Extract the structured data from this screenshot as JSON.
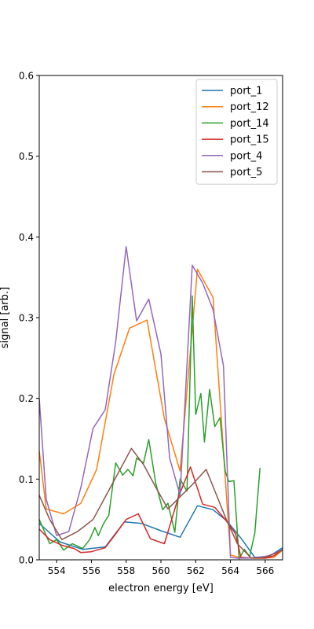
{
  "chart_data": {
    "type": "line",
    "xlabel": "electron energy [eV]",
    "ylabel": "signal [arb.]",
    "xlim": [
      553,
      567
    ],
    "ylim": [
      0,
      0.6
    ],
    "xticks": [
      554,
      556,
      558,
      560,
      562,
      564,
      566
    ],
    "xtick_labels": [
      "554",
      "556",
      "558",
      "560",
      "562",
      "564",
      "566"
    ],
    "yticks": [
      0,
      0.1,
      0.2,
      0.3,
      0.4,
      0.5,
      0.6
    ],
    "ytick_labels": [
      "0.0",
      "0.1",
      "0.2",
      "0.3",
      "0.4",
      "0.5",
      "0.6"
    ],
    "grid": false,
    "legend_position": "top-right",
    "series": [
      {
        "name": "port_1",
        "color": "#1f77b4",
        "x": [
          553.0,
          554.2,
          555.5,
          556.8,
          557.9,
          558.9,
          560.0,
          561.1,
          562.1,
          563.0,
          563.8,
          564.6,
          565.4,
          566.2,
          567.0
        ],
        "y": [
          0.045,
          0.022,
          0.013,
          0.016,
          0.047,
          0.045,
          0.036,
          0.028,
          0.067,
          0.062,
          0.048,
          0.027,
          0.003,
          0.004,
          0.015
        ]
      },
      {
        "name": "port_12",
        "color": "#ff7f0e",
        "x": [
          553.0,
          553.4,
          554.4,
          555.4,
          556.3,
          557.3,
          558.2,
          559.2,
          560.2,
          561.1,
          562.1,
          563.0,
          564.0,
          564.5,
          565.2,
          566.0,
          566.5,
          567.0
        ],
        "y": [
          0.135,
          0.063,
          0.057,
          0.07,
          0.112,
          0.23,
          0.287,
          0.297,
          0.175,
          0.11,
          0.36,
          0.325,
          0.006,
          0.003,
          0.002,
          0.002,
          0.003,
          0.012
        ]
      },
      {
        "name": "port_14",
        "color": "#2ca02c",
        "x": [
          553.0,
          553.6,
          554.0,
          554.4,
          554.9,
          555.5,
          555.9,
          556.2,
          556.4,
          556.7,
          557.0,
          557.4,
          557.8,
          558.1,
          558.4,
          558.6,
          559.0,
          559.3,
          559.7,
          560.1,
          560.4,
          560.8,
          561.1,
          561.5,
          561.8,
          562.0,
          562.3,
          562.5,
          562.8,
          563.1,
          563.4,
          563.7,
          563.9,
          564.2,
          564.5,
          564.8,
          565.1,
          565.4,
          565.7
        ],
        "y": [
          0.05,
          0.02,
          0.025,
          0.012,
          0.02,
          0.014,
          0.025,
          0.04,
          0.03,
          0.045,
          0.055,
          0.12,
          0.105,
          0.112,
          0.104,
          0.126,
          0.12,
          0.149,
          0.095,
          0.062,
          0.07,
          0.034,
          0.1,
          0.085,
          0.327,
          0.18,
          0.206,
          0.146,
          0.211,
          0.165,
          0.176,
          0.11,
          0.097,
          0.098,
          0.001,
          0.013,
          0.004,
          0.033,
          0.114
        ]
      },
      {
        "name": "port_15",
        "color": "#d62728",
        "x": [
          553.0,
          553.6,
          554.3,
          555.0,
          555.4,
          556.0,
          556.8,
          557.4,
          558.0,
          558.7,
          559.4,
          560.2,
          561.0,
          561.7,
          562.4,
          563.1,
          563.7,
          564.3,
          564.6,
          565.3,
          566.0,
          566.5,
          567.0
        ],
        "y": [
          0.038,
          0.025,
          0.018,
          0.014,
          0.009,
          0.01,
          0.015,
          0.032,
          0.05,
          0.057,
          0.026,
          0.02,
          0.077,
          0.115,
          0.069,
          0.065,
          0.05,
          0.032,
          0.003,
          0.002,
          0.002,
          0.005,
          0.013
        ]
      },
      {
        "name": "port_4",
        "color": "#9467bd",
        "x": [
          553.0,
          553.4,
          554.0,
          554.7,
          555.4,
          556.1,
          556.8,
          557.4,
          558.0,
          558.6,
          559.3,
          560.0,
          560.5,
          561.1,
          561.8,
          562.4,
          563.0,
          563.6,
          564.0,
          564.4,
          565.0,
          565.6,
          566.2,
          567.0
        ],
        "y": [
          0.2,
          0.075,
          0.03,
          0.035,
          0.09,
          0.163,
          0.186,
          0.27,
          0.388,
          0.296,
          0.323,
          0.255,
          0.126,
          0.08,
          0.365,
          0.343,
          0.31,
          0.24,
          0.003,
          0.002,
          0.002,
          0.003,
          0.005,
          0.013
        ]
      },
      {
        "name": "port_5",
        "color": "#8c564b",
        "x": [
          553.0,
          553.6,
          554.3,
          555.2,
          556.1,
          557.1,
          558.3,
          559.0,
          559.7,
          560.4,
          561.1,
          561.8,
          562.6,
          563.2,
          563.8,
          564.4,
          565.2,
          566.0,
          567.0
        ],
        "y": [
          0.08,
          0.05,
          0.025,
          0.035,
          0.05,
          0.09,
          0.138,
          0.118,
          0.09,
          0.063,
          0.078,
          0.093,
          0.112,
          0.08,
          0.048,
          0.02,
          0.002,
          0.003,
          0.012
        ]
      }
    ]
  }
}
